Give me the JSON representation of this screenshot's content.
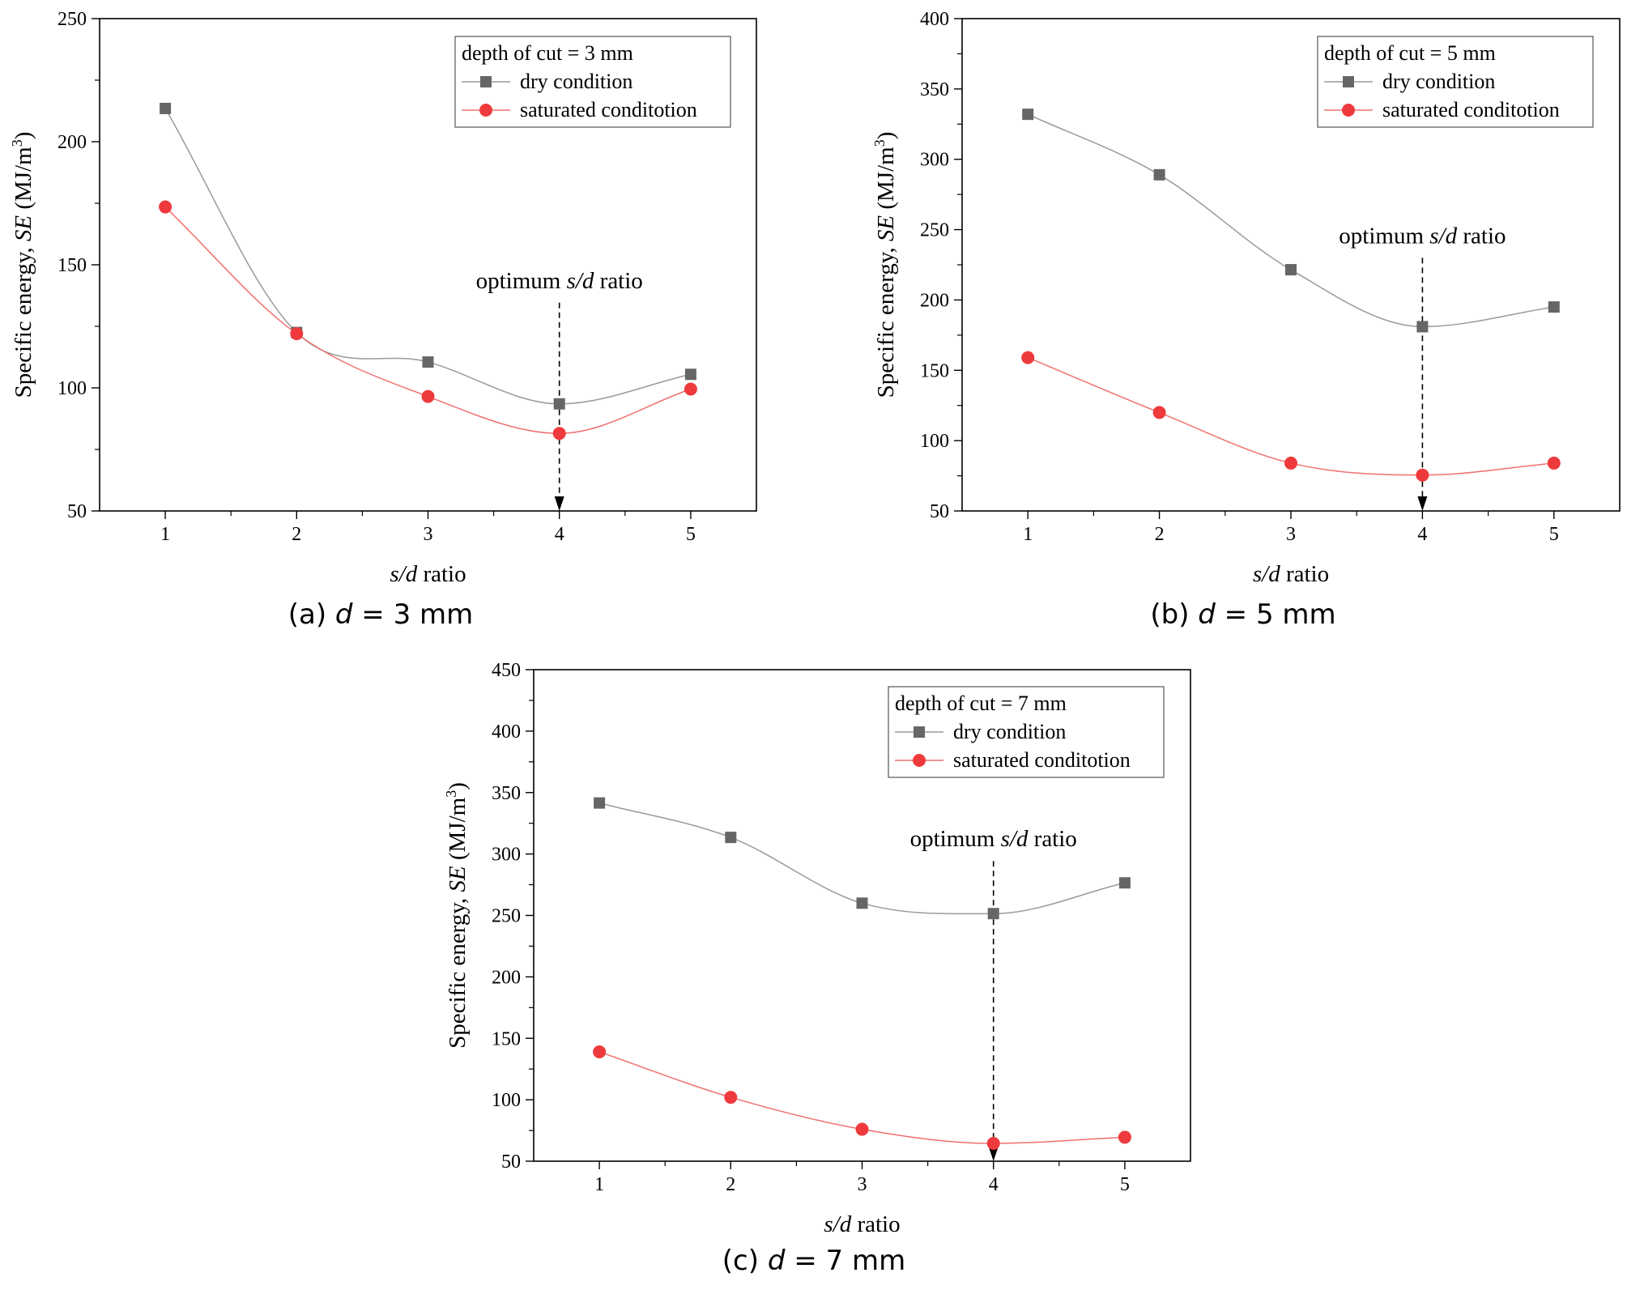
{
  "colors": {
    "dry": "#666666",
    "dry_line": "#9a9a9a",
    "saturated": "#ee3a3c",
    "saturated_line": "#f07070",
    "axis": "#000000"
  },
  "chart_data": [
    {
      "type": "line",
      "caption_prefix": "(a) ",
      "caption_var": "d",
      "caption_rest": " = 3 mm",
      "legend_title": "depth of cut = 3 mm",
      "annotation": {
        "pre": "optimum ",
        "italic": "s/d",
        "post": " ratio",
        "x": 4
      },
      "xlabel": {
        "italic": "s/d",
        "rest": " ratio"
      },
      "ylabel": {
        "pre": "Specific energy, ",
        "italic": "SE",
        "unit": " (MJ/m",
        "sup": "3",
        "close": ")"
      },
      "x": [
        1,
        2,
        3,
        4,
        5
      ],
      "xlim": [
        0.5,
        5.5
      ],
      "ylim": [
        50,
        250
      ],
      "yticks": [
        50,
        100,
        150,
        200,
        250
      ],
      "series": [
        {
          "name": "dry condition",
          "marker": "square",
          "values": [
            213.5,
            122.5,
            110.5,
            93.5,
            105.5
          ]
        },
        {
          "name": "saturated conditotion",
          "marker": "circle",
          "values": [
            173.5,
            122.0,
            96.5,
            81.5,
            99.5
          ]
        }
      ]
    },
    {
      "type": "line",
      "caption_prefix": "(b) ",
      "caption_var": "d",
      "caption_rest": " = 5 mm",
      "legend_title": "depth of cut = 5 mm",
      "annotation": {
        "pre": "optimum ",
        "italic": "s/d",
        "post": " ratio",
        "x": 4
      },
      "xlabel": {
        "italic": "s/d",
        "rest": " ratio"
      },
      "ylabel": {
        "pre": "Specific energy, ",
        "italic": "SE",
        "unit": " (MJ/m",
        "sup": "3",
        "close": ")"
      },
      "x": [
        1,
        2,
        3,
        4,
        5
      ],
      "xlim": [
        0.5,
        5.5
      ],
      "ylim": [
        50,
        400
      ],
      "yticks": [
        50,
        100,
        150,
        200,
        250,
        300,
        350,
        400
      ],
      "series": [
        {
          "name": "dry condition",
          "marker": "square",
          "values": [
            332,
            289,
            221.5,
            181,
            195
          ]
        },
        {
          "name": "saturated conditotion",
          "marker": "circle",
          "values": [
            159,
            120,
            84,
            75.5,
            84
          ]
        }
      ]
    },
    {
      "type": "line",
      "caption_prefix": "(c) ",
      "caption_var": "d",
      "caption_rest": " = 7 mm",
      "legend_title": "depth of cut = 7 mm",
      "annotation": {
        "pre": "optimum ",
        "italic": "s/d",
        "post": " ratio",
        "x": 4
      },
      "xlabel": {
        "italic": "s/d",
        "rest": " ratio"
      },
      "ylabel": {
        "pre": "Specific energy, ",
        "italic": "SE",
        "unit": " (MJ/m",
        "sup": "3",
        "close": ")"
      },
      "x": [
        1,
        2,
        3,
        4,
        5
      ],
      "xlim": [
        0.5,
        5.5
      ],
      "ylim": [
        50,
        450
      ],
      "yticks": [
        50,
        100,
        150,
        200,
        250,
        300,
        350,
        400,
        450
      ],
      "series": [
        {
          "name": "dry condition",
          "marker": "square",
          "values": [
            341.5,
            313.5,
            260,
            251.5,
            276.5
          ]
        },
        {
          "name": "saturated conditotion",
          "marker": "circle",
          "values": [
            139,
            102,
            76,
            64.5,
            69.5
          ]
        }
      ]
    }
  ]
}
